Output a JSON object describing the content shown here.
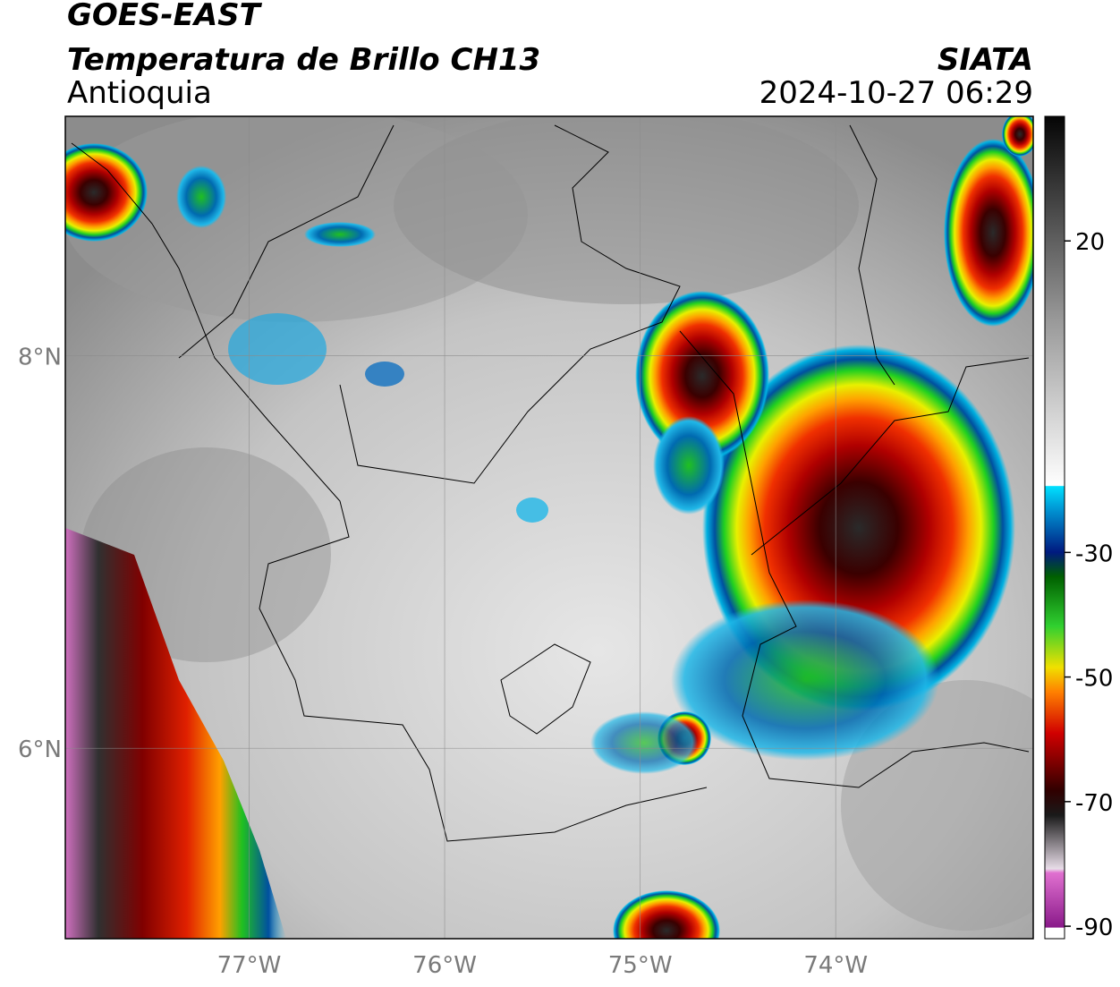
{
  "header": {
    "title": "GOES-EAST",
    "product": "Temperatura de Brillo CH13",
    "region": "Antioquia",
    "agency": "SIATA",
    "timestamp": "2024-10-27 06:29"
  },
  "map": {
    "lonlim": [
      -77.94,
      -72.99
    ],
    "latlim": [
      5.03,
      9.22
    ],
    "lon_ticks": [
      {
        "value": -77,
        "label": "77°W"
      },
      {
        "value": -76,
        "label": "76°W"
      },
      {
        "value": -75,
        "label": "75°W"
      },
      {
        "value": -74,
        "label": "74°W"
      }
    ],
    "lat_ticks": [
      {
        "value": 8,
        "label": "8°N"
      },
      {
        "value": 6,
        "label": "6°N"
      }
    ],
    "grid": true
  },
  "colorbar": {
    "lim": [
      -92,
      40
    ],
    "ticks": [
      20,
      -30,
      -50,
      -70,
      -90
    ]
  }
}
